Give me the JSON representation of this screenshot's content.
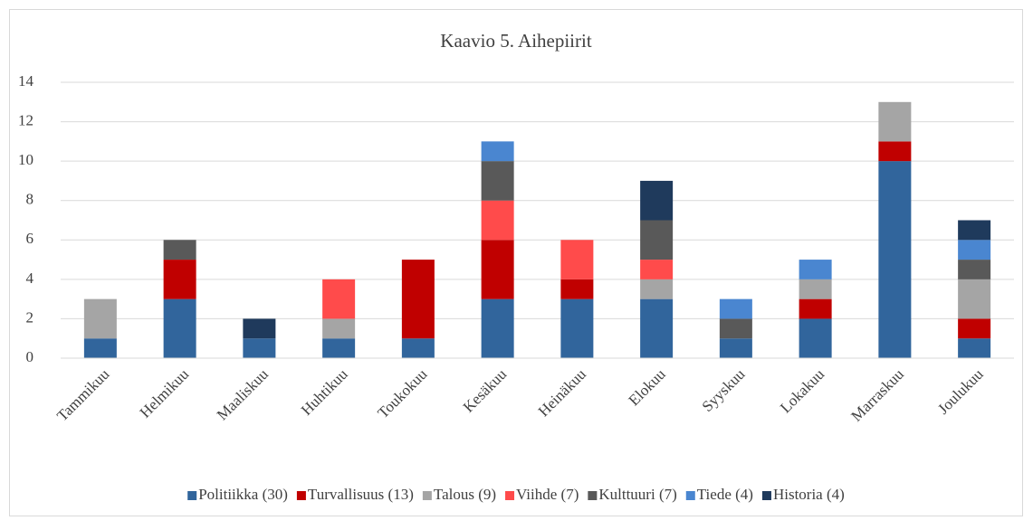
{
  "chart_data": {
    "type": "stacked_bar",
    "title": "Kaavio 5. Aihepiirit",
    "categories": [
      "Tammikuu",
      "Helmikuu",
      "Maaliskuu",
      "Huhtikuu",
      "Toukokuu",
      "Kesäkuu",
      "Heinäkuu",
      "Elokuu",
      "Syyskuu",
      "Lokakuu",
      "Marraskuu",
      "Joulukuu"
    ],
    "series": [
      {
        "name": "Politiikka (30)",
        "color": "#31659c",
        "values": [
          1,
          3,
          1,
          1,
          1,
          3,
          3,
          3,
          1,
          2,
          10,
          1
        ]
      },
      {
        "name": "Turvallisuus (13)",
        "color": "#c00000",
        "values": [
          0,
          2,
          0,
          0,
          4,
          3,
          1,
          0,
          0,
          1,
          1,
          1
        ]
      },
      {
        "name": "Talous (9)",
        "color": "#a5a5a5",
        "values": [
          2,
          0,
          0,
          1,
          0,
          0,
          0,
          1,
          0,
          1,
          2,
          2
        ]
      },
      {
        "name": "Viihde (7)",
        "color": "#ff4b4b",
        "values": [
          0,
          0,
          0,
          2,
          0,
          2,
          2,
          1,
          0,
          0,
          0,
          0
        ]
      },
      {
        "name": "Kulttuuri (7)",
        "color": "#595959",
        "values": [
          0,
          1,
          0,
          0,
          0,
          2,
          0,
          2,
          1,
          0,
          0,
          1
        ]
      },
      {
        "name": "Tiede (4)",
        "color": "#4a86d0",
        "values": [
          0,
          0,
          0,
          0,
          0,
          1,
          0,
          0,
          1,
          1,
          0,
          1
        ]
      },
      {
        "name": "Historia (4)",
        "color": "#1f3a5c",
        "values": [
          0,
          0,
          1,
          0,
          0,
          0,
          0,
          2,
          0,
          0,
          0,
          1
        ]
      }
    ],
    "ylim": [
      0,
      14
    ],
    "yticks": [
      0,
      2,
      4,
      6,
      8,
      10,
      12,
      14
    ],
    "grid": true,
    "legend": "bottom"
  }
}
